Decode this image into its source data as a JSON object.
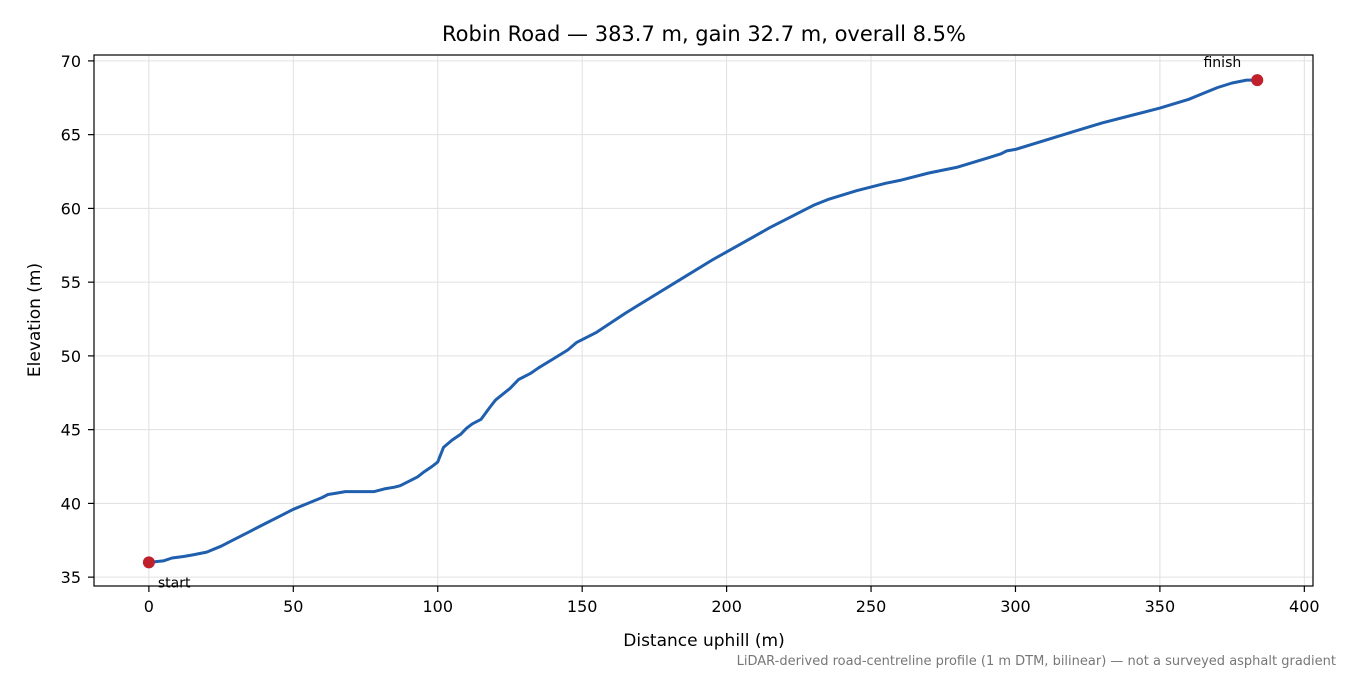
{
  "colors": {
    "line": "#1f5fad",
    "marker": "#c0202b",
    "grid": "#e0e0e0",
    "axis": "#000000",
    "footnote": "#777777"
  },
  "footnote": "LiDAR-derived road-centreline profile (1 m DTM, bilinear) — not a surveyed asphalt gradient",
  "chart_data": {
    "type": "line",
    "title": "Robin Road — 383.7 m, gain 32.7 m, overall 8.5%",
    "xlabel": "Distance uphill (m)",
    "ylabel": "Elevation (m)",
    "xlim": [
      -19,
      403
    ],
    "ylim": [
      34.4,
      70.4
    ],
    "xticks": [
      0,
      50,
      100,
      150,
      200,
      250,
      300,
      350,
      400
    ],
    "yticks": [
      35,
      40,
      45,
      50,
      55,
      60,
      65,
      70
    ],
    "grid": true,
    "series": [
      {
        "x": [
          0,
          5,
          8,
          12,
          15,
          20,
          25,
          30,
          35,
          40,
          45,
          50,
          55,
          60,
          62,
          65,
          68,
          70,
          73,
          75,
          78,
          80,
          82,
          85,
          87,
          90,
          93,
          95,
          98,
          100,
          102,
          105,
          108,
          110,
          112,
          115,
          118,
          120,
          125,
          128,
          132,
          135,
          140,
          145,
          148,
          155,
          165,
          175,
          185,
          195,
          205,
          215,
          220,
          225,
          230,
          235,
          245,
          255,
          260,
          270,
          280,
          290,
          295,
          297,
          300,
          310,
          320,
          330,
          340,
          350,
          360,
          365,
          370,
          375,
          380,
          383.7
        ],
        "y": [
          36.0,
          36.1,
          36.3,
          36.4,
          36.5,
          36.7,
          37.1,
          37.6,
          38.1,
          38.6,
          39.1,
          39.6,
          40.0,
          40.4,
          40.6,
          40.7,
          40.8,
          40.8,
          40.8,
          40.8,
          40.8,
          40.9,
          41.0,
          41.1,
          41.2,
          41.5,
          41.8,
          42.1,
          42.5,
          42.8,
          43.8,
          44.3,
          44.7,
          45.1,
          45.4,
          45.7,
          46.5,
          47.0,
          47.8,
          48.4,
          48.8,
          49.2,
          49.8,
          50.4,
          50.9,
          51.6,
          52.9,
          54.1,
          55.3,
          56.5,
          57.6,
          58.7,
          59.2,
          59.7,
          60.2,
          60.6,
          61.2,
          61.7,
          61.9,
          62.4,
          62.8,
          63.4,
          63.7,
          63.9,
          64.0,
          64.6,
          65.2,
          65.8,
          66.3,
          66.8,
          67.4,
          67.8,
          68.2,
          68.5,
          68.7,
          68.7
        ]
      }
    ],
    "annotations": [
      {
        "label": "start",
        "x": 0,
        "y": 36.0
      },
      {
        "label": "finish",
        "x": 383.7,
        "y": 68.7
      }
    ]
  }
}
